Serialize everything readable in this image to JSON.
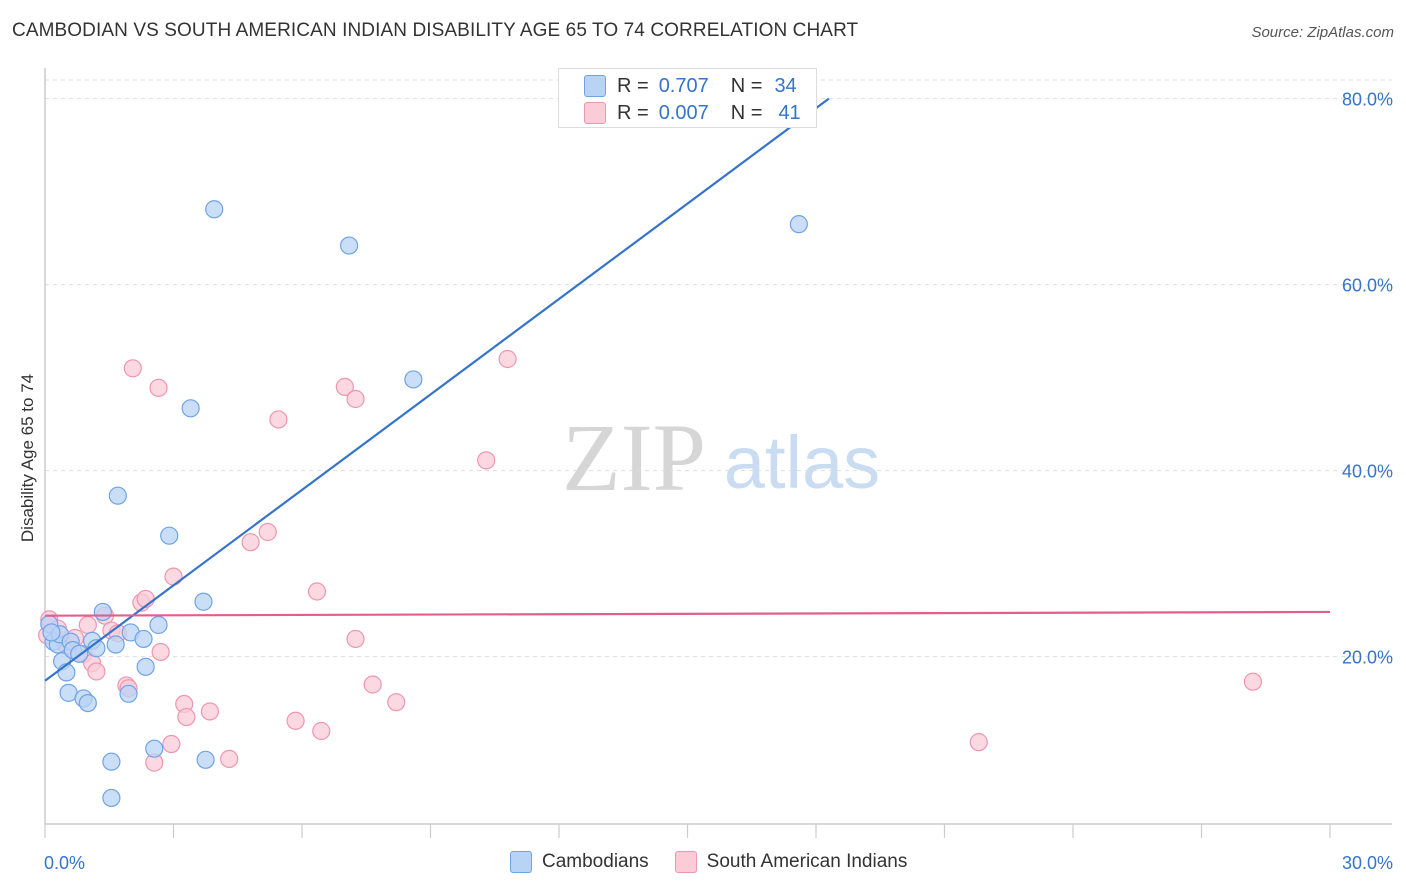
{
  "title": "CAMBODIAN VS SOUTH AMERICAN INDIAN DISABILITY AGE 65 TO 74 CORRELATION CHART",
  "source": "Source: ZipAtlas.com",
  "watermark": {
    "zip": "ZIP",
    "atlas": "atlas"
  },
  "colors": {
    "blue": "#3574c9",
    "blue_fill": "#b9d3f5",
    "pink": "#e0608a",
    "pink_fill": "#fbcbd8",
    "grid": "#dddddd"
  },
  "legend_stats": [
    {
      "r_label": "R =",
      "r_value": "0.707",
      "n_label": "N =",
      "n_value": "34"
    },
    {
      "r_label": "R =",
      "r_value": "0.007",
      "n_label": "N =",
      "n_value": "41"
    }
  ],
  "bottom_legend": [
    "Cambodians",
    "South American Indians"
  ],
  "chart_data": {
    "type": "scatter",
    "xlabel": "",
    "ylabel": "Disability Age 65 to 74",
    "xlim": [
      0,
      30
    ],
    "ylim": [
      2,
      82
    ],
    "x_tick_labels": [
      "0.0%",
      "30.0%"
    ],
    "y_ticks": [
      20,
      40,
      60,
      80
    ],
    "y_tick_labels": [
      "20.0%",
      "40.0%",
      "60.0%",
      "80.0%"
    ],
    "grid": "horizontal dashed",
    "legend_placement": "top-center",
    "series": [
      {
        "name": "Cambodians",
        "color": "#3574c9",
        "points": [
          [
            0.1,
            23.5
          ],
          [
            0.2,
            21.6
          ],
          [
            0.3,
            21.3
          ],
          [
            0.35,
            22.4
          ],
          [
            0.4,
            19.5
          ],
          [
            0.5,
            18.3
          ],
          [
            0.55,
            16.1
          ],
          [
            0.6,
            21.6
          ],
          [
            0.65,
            20.7
          ],
          [
            0.8,
            20.3
          ],
          [
            0.9,
            15.5
          ],
          [
            1.0,
            15.0
          ],
          [
            1.1,
            21.7
          ],
          [
            1.2,
            20.9
          ],
          [
            1.35,
            24.8
          ],
          [
            1.55,
            8.7
          ],
          [
            1.55,
            4.8
          ],
          [
            1.65,
            21.3
          ],
          [
            1.7,
            37.3
          ],
          [
            1.95,
            16.0
          ],
          [
            2.0,
            22.6
          ],
          [
            2.3,
            21.9
          ],
          [
            2.35,
            18.9
          ],
          [
            2.55,
            10.1
          ],
          [
            2.65,
            23.4
          ],
          [
            2.9,
            33.0
          ],
          [
            3.4,
            46.7
          ],
          [
            3.7,
            25.9
          ],
          [
            3.75,
            8.9
          ],
          [
            3.95,
            68.1
          ],
          [
            7.1,
            64.2
          ],
          [
            8.6,
            49.8
          ],
          [
            17.6,
            66.5
          ],
          [
            0.15,
            22.6
          ]
        ]
      },
      {
        "name": "South American Indians",
        "color": "#e0608a",
        "points": [
          [
            0.1,
            24.0
          ],
          [
            0.3,
            23.0
          ],
          [
            0.5,
            21.2
          ],
          [
            0.7,
            22.0
          ],
          [
            0.9,
            20.3
          ],
          [
            1.0,
            23.4
          ],
          [
            1.1,
            19.3
          ],
          [
            1.2,
            18.4
          ],
          [
            1.4,
            24.4
          ],
          [
            1.55,
            22.8
          ],
          [
            1.7,
            22.5
          ],
          [
            1.9,
            16.9
          ],
          [
            1.95,
            16.6
          ],
          [
            2.05,
            51.0
          ],
          [
            2.25,
            25.8
          ],
          [
            2.35,
            26.2
          ],
          [
            2.55,
            8.6
          ],
          [
            2.65,
            48.9
          ],
          [
            2.7,
            20.5
          ],
          [
            2.95,
            10.6
          ],
          [
            3.0,
            28.6
          ],
          [
            3.25,
            14.9
          ],
          [
            3.3,
            13.5
          ],
          [
            3.85,
            14.1
          ],
          [
            4.3,
            9.0
          ],
          [
            4.8,
            32.3
          ],
          [
            5.2,
            33.4
          ],
          [
            5.45,
            45.5
          ],
          [
            5.85,
            13.1
          ],
          [
            6.35,
            27.0
          ],
          [
            6.45,
            12.0
          ],
          [
            7.0,
            49.0
          ],
          [
            7.25,
            47.7
          ],
          [
            7.25,
            21.9
          ],
          [
            7.65,
            17.0
          ],
          [
            8.2,
            15.1
          ],
          [
            10.3,
            41.1
          ],
          [
            10.8,
            52.0
          ],
          [
            21.8,
            10.8
          ],
          [
            28.2,
            17.3
          ],
          [
            0.05,
            22.3
          ]
        ]
      }
    ],
    "trend_lines": [
      {
        "series": "Cambodians",
        "x": [
          0,
          18.3
        ],
        "y": [
          17.4,
          80.0
        ]
      },
      {
        "series": "South American Indians",
        "x": [
          0,
          30
        ],
        "y": [
          24.4,
          24.8
        ]
      }
    ]
  }
}
